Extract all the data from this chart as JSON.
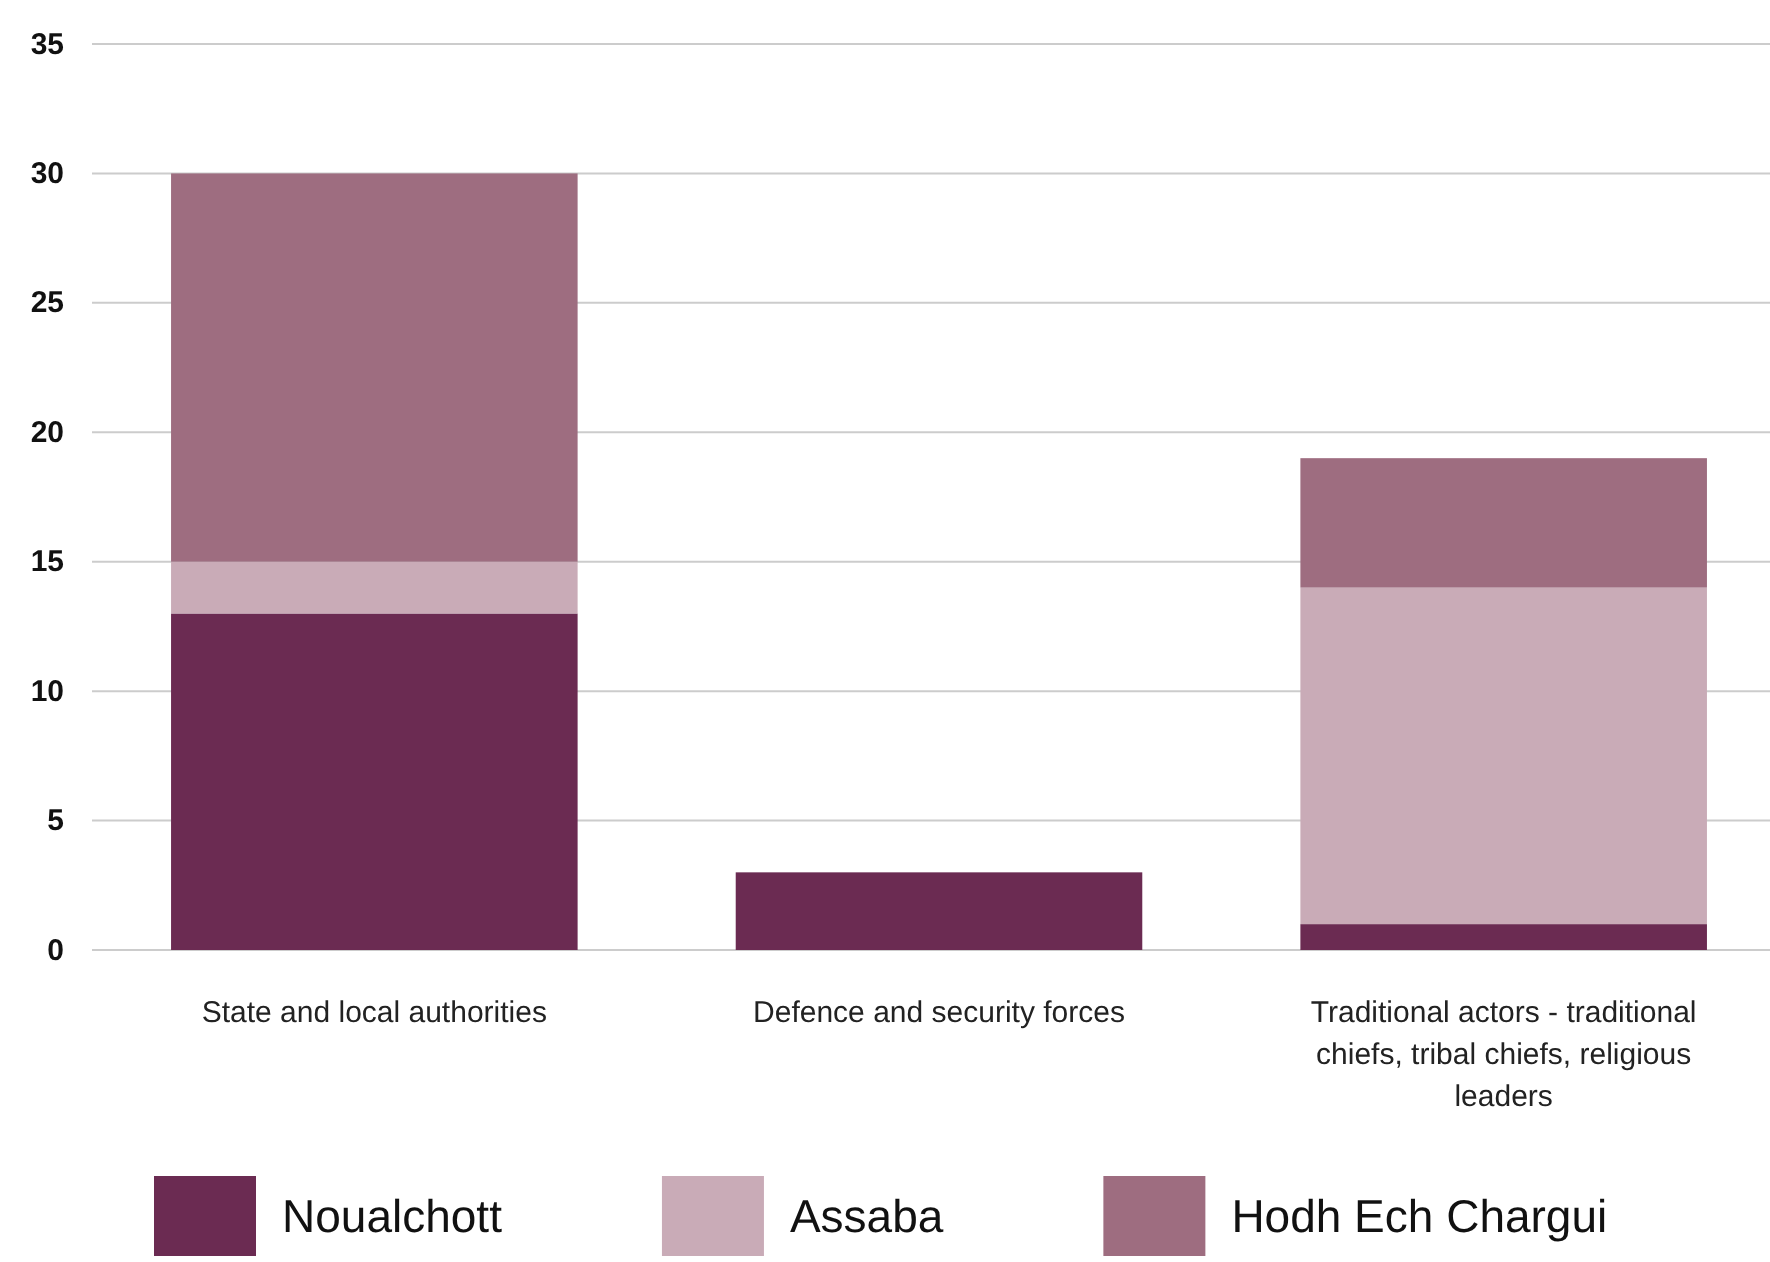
{
  "chart_data": {
    "type": "bar",
    "stacked": true,
    "categories": [
      "State and local authorities",
      "Defence and security forces",
      "Traditional actors - traditional chiefs, tribal chiefs, religious leaders"
    ],
    "series": [
      {
        "name": "Noualchott",
        "color": "#6b2b52",
        "values": [
          13,
          3,
          1
        ]
      },
      {
        "name": "Assaba",
        "color": "#c9abb7",
        "values": [
          2,
          0,
          13
        ]
      },
      {
        "name": "Hodh Ech Chargui",
        "color": "#9e6d80",
        "values": [
          15,
          0,
          5
        ]
      }
    ],
    "ylim": [
      0,
      35
    ],
    "yticks": [
      0,
      5,
      10,
      15,
      20,
      25,
      30,
      35
    ],
    "grid": "y",
    "legend": "bottom"
  }
}
